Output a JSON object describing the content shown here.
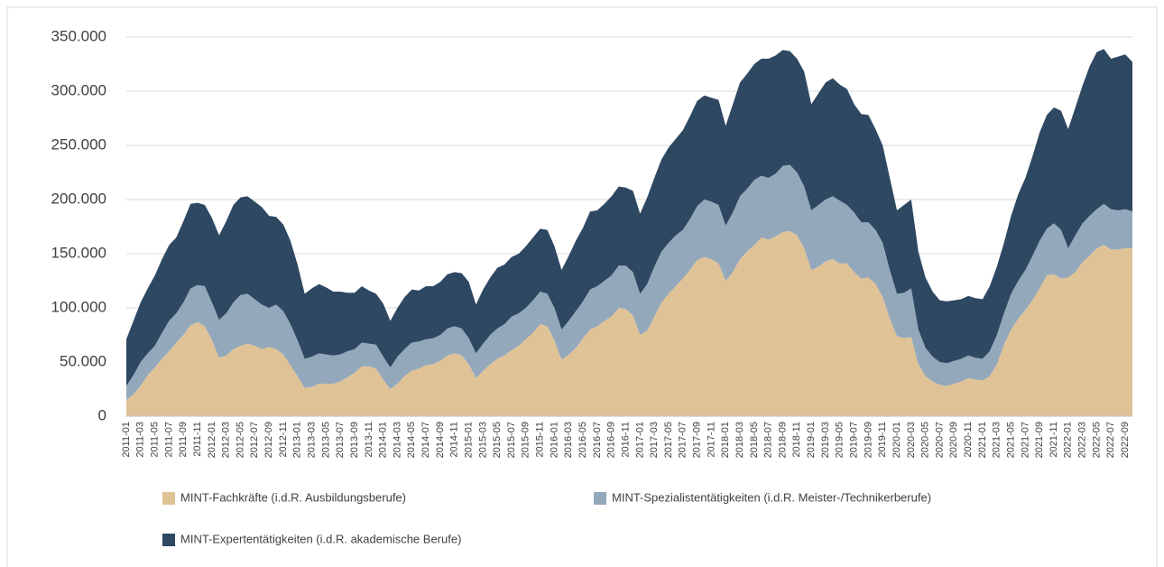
{
  "chart_data": {
    "type": "stacked_area",
    "categories": [
      "2011-01",
      null,
      "2011-03",
      null,
      "2011-05",
      null,
      "2011-07",
      null,
      "2011-09",
      null,
      "2011-11",
      null,
      "2012-01",
      null,
      "2012-03",
      null,
      "2012-05",
      null,
      "2012-07",
      null,
      "2012-09",
      null,
      "2012-11",
      null,
      "2013-01",
      null,
      "2013-03",
      null,
      "2013-05",
      null,
      "2013-07",
      null,
      "2013-09",
      null,
      "2013-11",
      null,
      "2014-01",
      null,
      "2014-03",
      null,
      "2014-05",
      null,
      "2014-07",
      null,
      "2014-09",
      null,
      "2014-11",
      null,
      "2015-01",
      null,
      "2015-03",
      null,
      "2015-05",
      null,
      "2015-07",
      null,
      "2015-09",
      null,
      "2015-11",
      null,
      "2016-01",
      null,
      "2016-03",
      null,
      "2016-05",
      null,
      "2016-07",
      null,
      "2016-09",
      null,
      "2016-11",
      null,
      "2017-01",
      null,
      "2017-03",
      null,
      "2017-05",
      null,
      "2017-07",
      null,
      "2017-09",
      null,
      "2017-11",
      null,
      "2018-01",
      null,
      "2018-03",
      null,
      "2018-05",
      null,
      "2018-07",
      null,
      "2018-09",
      null,
      "2018-11",
      null,
      "2019-01",
      null,
      "2019-03",
      null,
      "2019-05",
      null,
      "2019-07",
      null,
      "2019-09",
      null,
      "2019-11",
      null,
      "2020-01",
      null,
      "2020-03",
      null,
      "2020-05",
      null,
      "2020-07",
      null,
      "2020-09",
      null,
      "2020-11",
      null,
      "2021-01",
      null,
      "2021-03",
      null,
      "2021-05",
      null,
      "2021-07",
      null,
      "2021-09",
      null,
      "2021-11",
      null,
      "2022-01",
      null,
      "2022-03",
      null,
      "2022-05",
      null,
      "2022-07",
      null,
      "2022-09",
      null
    ],
    "series": [
      {
        "name": "MINT-Fachkräfte (i.d.R. Ausbildungsberufe)",
        "color": "#dfc397",
        "values": [
          15000,
          20000,
          28000,
          38000,
          45000,
          53000,
          60000,
          68000,
          75000,
          84000,
          87000,
          83000,
          70000,
          54000,
          56000,
          62000,
          65000,
          67000,
          65000,
          62000,
          64000,
          62000,
          57000,
          47000,
          37000,
          26000,
          27000,
          30000,
          30000,
          30000,
          32000,
          36000,
          40000,
          46000,
          46000,
          44000,
          34000,
          25000,
          30000,
          37000,
          42000,
          44000,
          47000,
          48000,
          51000,
          56000,
          58000,
          56000,
          48000,
          35000,
          42000,
          48000,
          53000,
          56000,
          61000,
          65000,
          71000,
          77000,
          85000,
          83000,
          70000,
          52000,
          57000,
          63000,
          72000,
          80000,
          83000,
          88000,
          92000,
          100000,
          99000,
          93000,
          75000,
          79000,
          92000,
          105000,
          113000,
          120000,
          127000,
          135000,
          144000,
          147000,
          145000,
          141000,
          125000,
          133000,
          145000,
          152000,
          158000,
          165000,
          163000,
          166000,
          170000,
          171000,
          167000,
          155000,
          135000,
          138000,
          143000,
          145000,
          141000,
          141000,
          133000,
          127000,
          128000,
          122000,
          110000,
          90000,
          74000,
          72000,
          73000,
          48000,
          37000,
          32000,
          29000,
          28000,
          30000,
          32000,
          35000,
          34000,
          33000,
          37000,
          48000,
          66000,
          80000,
          90000,
          98000,
          107000,
          118000,
          130000,
          131000,
          127000,
          128000,
          133000,
          142000,
          148000,
          155000,
          158000,
          154000,
          154000,
          155000,
          155000
        ]
      },
      {
        "name": "MINT-Spezialistentätigkeiten (i.d.R. Meister-/Technikerberufe)",
        "color": "#94a8bb",
        "values": [
          13000,
          18000,
          22000,
          20000,
          20000,
          24000,
          28000,
          27000,
          30000,
          34000,
          34000,
          37000,
          35000,
          35000,
          39000,
          43000,
          47000,
          46000,
          43000,
          41000,
          36000,
          41000,
          40000,
          38000,
          33000,
          27000,
          28000,
          28000,
          27000,
          26000,
          25000,
          24000,
          22000,
          22000,
          21000,
          22000,
          21000,
          20000,
          25000,
          25000,
          26000,
          25000,
          24000,
          24000,
          24000,
          25000,
          25000,
          25000,
          24000,
          23000,
          25000,
          27000,
          28000,
          29000,
          31000,
          30000,
          29000,
          30000,
          30000,
          30000,
          30000,
          28000,
          31000,
          34000,
          34000,
          37000,
          37000,
          37000,
          38000,
          39000,
          40000,
          40000,
          38000,
          43000,
          46000,
          47000,
          47000,
          47000,
          45000,
          47000,
          50000,
          53000,
          53000,
          54000,
          51000,
          55000,
          58000,
          58000,
          60000,
          57000,
          57000,
          58000,
          61000,
          61000,
          58000,
          57000,
          55000,
          57000,
          57000,
          58000,
          58000,
          54000,
          55000,
          52000,
          51000,
          50000,
          50000,
          45000,
          39000,
          42000,
          45000,
          32000,
          26000,
          23000,
          21000,
          21000,
          21000,
          21000,
          21000,
          20000,
          20000,
          23000,
          27000,
          29000,
          33000,
          35000,
          37000,
          41000,
          44000,
          43000,
          47000,
          45000,
          27000,
          34000,
          36000,
          37000,
          36000,
          38000,
          37000,
          36000,
          36000,
          34000
        ]
      },
      {
        "name": "MINT-Expertentätigkeiten (i.d.R. akademische Berufe)",
        "color": "#2e4862",
        "values": [
          43000,
          50000,
          55000,
          60000,
          65000,
          68000,
          70000,
          70000,
          75000,
          78000,
          76000,
          75000,
          78000,
          78000,
          85000,
          90000,
          90000,
          90000,
          90000,
          90000,
          85000,
          81000,
          80000,
          77000,
          70000,
          60000,
          63000,
          64000,
          62000,
          59000,
          58000,
          54000,
          52000,
          52000,
          49000,
          47000,
          49000,
          43000,
          45000,
          48000,
          49000,
          47000,
          49000,
          48000,
          49000,
          50000,
          50000,
          51000,
          52000,
          45000,
          50000,
          53000,
          56000,
          55000,
          55000,
          55000,
          57000,
          58000,
          58000,
          59000,
          57000,
          55000,
          60000,
          65000,
          68000,
          72000,
          70000,
          71000,
          73000,
          73000,
          72000,
          75000,
          74000,
          80000,
          82000,
          85000,
          88000,
          89000,
          92000,
          95000,
          97000,
          96000,
          96000,
          97000,
          92000,
          100000,
          105000,
          106000,
          107000,
          108000,
          110000,
          109000,
          107000,
          105000,
          105000,
          106000,
          98000,
          103000,
          108000,
          109000,
          107000,
          107000,
          100000,
          100000,
          99000,
          93000,
          90000,
          85000,
          77000,
          81000,
          82000,
          72000,
          65000,
          60000,
          57000,
          57000,
          56000,
          55000,
          55000,
          55000,
          55000,
          60000,
          63000,
          65000,
          72000,
          80000,
          85000,
          92000,
          100000,
          105000,
          107000,
          110000,
          110000,
          118000,
          127000,
          138000,
          145000,
          143000,
          139000,
          142000,
          143000,
          138000
        ]
      }
    ],
    "ylim": [
      0,
      350000
    ],
    "yticks": [
      0,
      {
        "value": 50000,
        "label": "50.000"
      },
      {
        "value": 100000,
        "label": "100.000"
      },
      {
        "value": 150000,
        "label": "150.000"
      },
      {
        "value": 200000,
        "label": "200.000"
      },
      {
        "value": 250000,
        "label": "250.000"
      },
      {
        "value": 300000,
        "label": "300.000"
      },
      {
        "value": 350000,
        "label": "350.000"
      }
    ],
    "grid": true,
    "legend": "bottom"
  }
}
